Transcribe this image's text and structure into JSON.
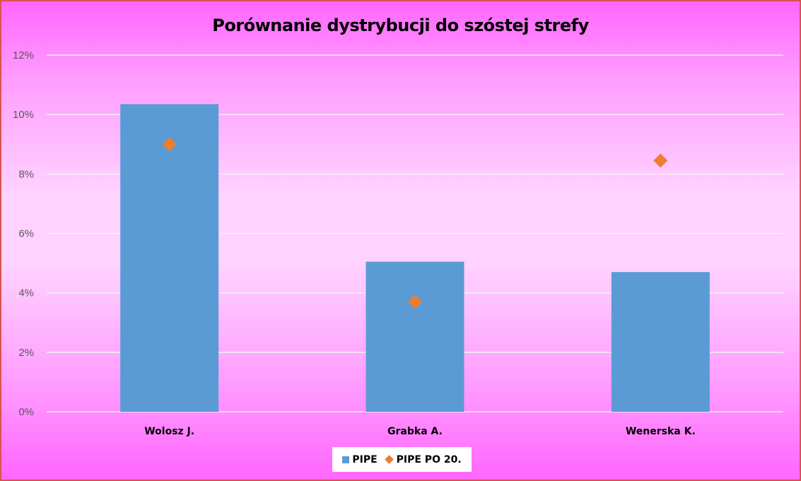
{
  "chart_data": {
    "type": "bar",
    "title": "Porównanie dystrybucji do szóstej strefy",
    "xlabel": "",
    "ylabel": "",
    "categories": [
      "Wolosz J.",
      "Grabka A.",
      "Wenerska K."
    ],
    "ylim": [
      0,
      12
    ],
    "yticks": [
      "0%",
      "2%",
      "4%",
      "6%",
      "8%",
      "10%",
      "12%"
    ],
    "ytick_values": [
      0,
      2,
      4,
      6,
      8,
      10,
      12
    ],
    "grid": true,
    "legend_position": "bottom",
    "series": [
      {
        "name": "PIPE",
        "kind": "bar",
        "color": "#5b9bd5",
        "values": [
          10.35,
          5.05,
          4.7
        ]
      },
      {
        "name": "PIPE PO 20.",
        "kind": "marker-diamond",
        "color": "#ed7d31",
        "values": [
          9.0,
          3.7,
          8.45
        ]
      }
    ]
  }
}
